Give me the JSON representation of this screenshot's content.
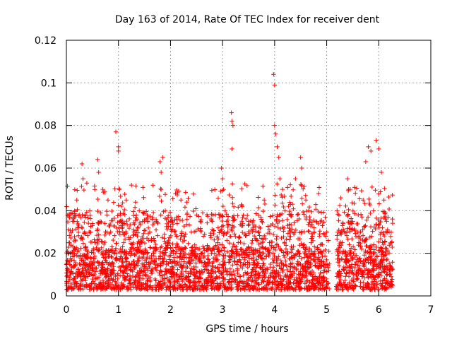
{
  "chart_data": {
    "type": "scatter",
    "title": "Day 163 of 2014, Rate Of TEC Index for receiver dent",
    "xlabel": "GPS time / hours",
    "ylabel": "ROTI / TECUs",
    "xlim": [
      0,
      7
    ],
    "ylim": [
      0,
      0.12
    ],
    "x_ticks": [
      "0",
      "1",
      "2",
      "3",
      "4",
      "5",
      "6",
      "7"
    ],
    "y_ticks": [
      "0",
      "0.02",
      "0.04",
      "0.06",
      "0.08",
      "0.1",
      "0.12"
    ],
    "grid": true,
    "marker": "+",
    "color": "#ff0000",
    "series": [
      {
        "name": "ROTI",
        "description": "dense scatter of ROTI values, approximately continuous coverage from 0 to 6.27 h with a small gap near 5.1 h",
        "x": [
          0.02,
          0.05,
          0.08,
          0.12,
          0.15,
          0.2,
          0.25,
          0.3,
          0.32,
          0.35,
          0.4,
          0.45,
          0.5,
          0.55,
          0.6,
          0.62,
          0.65,
          0.7,
          0.75,
          0.78,
          0.8,
          0.85,
          0.9,
          0.95,
          1.0,
          1.0,
          1.02,
          1.05,
          1.1,
          1.15,
          1.2,
          1.25,
          1.3,
          1.35,
          1.4,
          1.45,
          1.5,
          1.55,
          1.6,
          1.7,
          1.8,
          1.82,
          1.85,
          1.9,
          1.95,
          2.0,
          2.1,
          2.2,
          2.3,
          2.4,
          2.5,
          2.6,
          2.7,
          2.8,
          2.9,
          2.98,
          3.0,
          3.02,
          3.05,
          3.1,
          3.17,
          3.18,
          3.2,
          3.18,
          3.3,
          3.4,
          3.5,
          3.6,
          3.7,
          3.8,
          3.9,
          3.98,
          4.0,
          4.0,
          4.02,
          4.05,
          4.08,
          4.1,
          4.15,
          4.2,
          4.3,
          4.4,
          4.5,
          4.52,
          4.6,
          4.7,
          4.8,
          4.9,
          5.0,
          5.05,
          5.2,
          5.3,
          5.4,
          5.45,
          5.5,
          5.6,
          5.7,
          5.75,
          5.8,
          5.85,
          5.9,
          5.95,
          6.0,
          6.05,
          6.1,
          6.15,
          6.2,
          6.25
        ],
        "y": [
          0.012,
          0.025,
          0.01,
          0.035,
          0.02,
          0.045,
          0.015,
          0.062,
          0.055,
          0.03,
          0.018,
          0.04,
          0.012,
          0.025,
          0.064,
          0.058,
          0.035,
          0.05,
          0.02,
          0.038,
          0.045,
          0.03,
          0.015,
          0.077,
          0.07,
          0.068,
          0.05,
          0.035,
          0.025,
          0.045,
          0.02,
          0.052,
          0.03,
          0.015,
          0.04,
          0.025,
          0.035,
          0.02,
          0.03,
          0.015,
          0.063,
          0.058,
          0.065,
          0.04,
          0.025,
          0.035,
          0.02,
          0.045,
          0.015,
          0.03,
          0.038,
          0.02,
          0.012,
          0.035,
          0.025,
          0.06,
          0.055,
          0.05,
          0.04,
          0.03,
          0.086,
          0.082,
          0.08,
          0.069,
          0.025,
          0.015,
          0.035,
          0.02,
          0.03,
          0.045,
          0.025,
          0.104,
          0.099,
          0.08,
          0.076,
          0.07,
          0.065,
          0.055,
          0.05,
          0.04,
          0.03,
          0.055,
          0.065,
          0.06,
          0.045,
          0.025,
          0.035,
          0.02,
          0.03,
          0.015,
          0.04,
          0.025,
          0.055,
          0.05,
          0.035,
          0.03,
          0.045,
          0.063,
          0.07,
          0.068,
          0.04,
          0.073,
          0.069,
          0.058,
          0.045,
          0.035,
          0.03,
          0.025
        ]
      }
    ]
  }
}
